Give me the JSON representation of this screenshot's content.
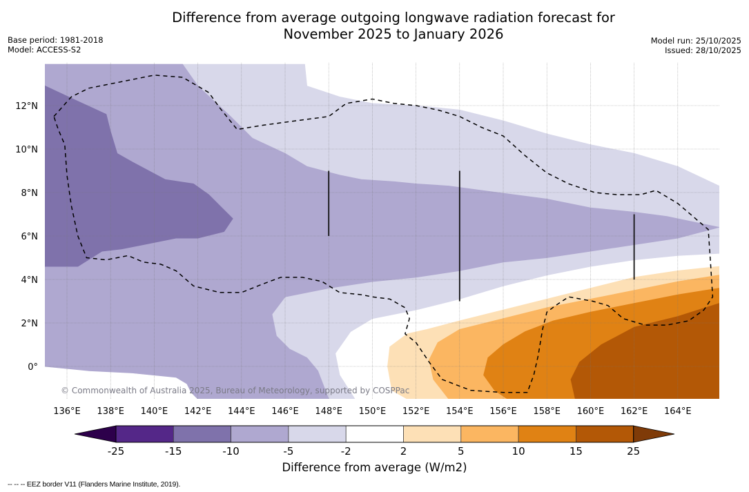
{
  "header": {
    "title_line1": "Difference from average outgoing longwave radiation forecast for",
    "title_line2": "November 2025 to January 2026",
    "base_period": "Base period: 1981-2018",
    "model": "Model: ACCESS-S2",
    "model_run": "Model run: 25/10/2025",
    "issued": "Issued: 28/10/2025"
  },
  "map": {
    "extent": {
      "lon_min": 135.0,
      "lon_max": 165.9,
      "lat_min": -1.5,
      "lat_max": 13.9
    },
    "lon_ticks": [
      {
        "value": 136,
        "label": "136°E"
      },
      {
        "value": 138,
        "label": "138°E"
      },
      {
        "value": 140,
        "label": "140°E"
      },
      {
        "value": 142,
        "label": "142°E"
      },
      {
        "value": 144,
        "label": "144°E"
      },
      {
        "value": 146,
        "label": "146°E"
      },
      {
        "value": 148,
        "label": "148°E"
      },
      {
        "value": 150,
        "label": "150°E"
      },
      {
        "value": 152,
        "label": "152°E"
      },
      {
        "value": 154,
        "label": "154°E"
      },
      {
        "value": 156,
        "label": "156°E"
      },
      {
        "value": 158,
        "label": "158°E"
      },
      {
        "value": 160,
        "label": "160°E"
      },
      {
        "value": 162,
        "label": "162°E"
      },
      {
        "value": 164,
        "label": "164°E"
      }
    ],
    "lat_ticks": [
      {
        "value": 12,
        "label": "12°N"
      },
      {
        "value": 10,
        "label": "10°N"
      },
      {
        "value": 8,
        "label": "8°N"
      },
      {
        "value": 6,
        "label": "6°N"
      },
      {
        "value": 4,
        "label": "4°N"
      },
      {
        "value": 2,
        "label": "2°N"
      },
      {
        "value": 0,
        "label": "0°"
      }
    ],
    "copyright": "© Commonwealth of Australia 2025, Bureau of Meteorology, supported by COSPPac",
    "contour_regions": [
      {
        "name": "anomaly--5-to--2",
        "color": "#d8d8ea",
        "points": [
          [
            135,
            13.9
          ],
          [
            141.3,
            13.9
          ],
          [
            144,
            13.9
          ],
          [
            146.9,
            13.9
          ],
          [
            147,
            12.9
          ],
          [
            148.5,
            12.4
          ],
          [
            150,
            12.1
          ],
          [
            152,
            12
          ],
          [
            154,
            11.8
          ],
          [
            156,
            11.3
          ],
          [
            158,
            10.7
          ],
          [
            160,
            10.2
          ],
          [
            162,
            9.8
          ],
          [
            164,
            9.2
          ],
          [
            165.9,
            8.3
          ],
          [
            165.9,
            5.2
          ],
          [
            164,
            5.1
          ],
          [
            162,
            4.9
          ],
          [
            160,
            4.6
          ],
          [
            158,
            4.2
          ],
          [
            156,
            3.7
          ],
          [
            154,
            3.1
          ],
          [
            152,
            2.6
          ],
          [
            150,
            2.2
          ],
          [
            149,
            1.6
          ],
          [
            148.3,
            0.6
          ],
          [
            148.5,
            -0.4
          ],
          [
            149.2,
            -1.5
          ],
          [
            143.8,
            -1.5
          ],
          [
            142.5,
            -0.8
          ],
          [
            141.5,
            -0.5
          ],
          [
            140,
            -0.4
          ],
          [
            138,
            -0.2
          ],
          [
            136,
            -0.1
          ],
          [
            135,
            0
          ],
          [
            135,
            13.9
          ]
        ]
      },
      {
        "name": "anomaly--10-to--5",
        "color": "#afa8d0",
        "points": [
          [
            135,
            13.9
          ],
          [
            141.3,
            13.9
          ],
          [
            142,
            12.9
          ],
          [
            143.5,
            11.5
          ],
          [
            144.5,
            10.5
          ],
          [
            146,
            9.8
          ],
          [
            147,
            9.2
          ],
          [
            148.5,
            8.8
          ],
          [
            149.5,
            8.6
          ],
          [
            151,
            8.5
          ],
          [
            152,
            8.4
          ],
          [
            153.5,
            8.3
          ],
          [
            155,
            8.1
          ],
          [
            156.5,
            7.9
          ],
          [
            158,
            7.7
          ],
          [
            160,
            7.3
          ],
          [
            162,
            7.1
          ],
          [
            163.5,
            6.9
          ],
          [
            165.9,
            6.4
          ],
          [
            164,
            5.9
          ],
          [
            162,
            5.6
          ],
          [
            160,
            5.3
          ],
          [
            158,
            5
          ],
          [
            156,
            4.8
          ],
          [
            154,
            4.4
          ],
          [
            152,
            4.1
          ],
          [
            150,
            3.9
          ],
          [
            148,
            3.6
          ],
          [
            146,
            3.2
          ],
          [
            145.4,
            2.4
          ],
          [
            145.6,
            1.4
          ],
          [
            146.2,
            0.8
          ],
          [
            147,
            0.4
          ],
          [
            147.5,
            -0.2
          ],
          [
            148,
            -1.5
          ],
          [
            142,
            -1.5
          ],
          [
            141.7,
            -1.2
          ],
          [
            141.5,
            -0.8
          ],
          [
            141,
            -0.5
          ],
          [
            139,
            -0.3
          ],
          [
            137,
            -0.2
          ],
          [
            135,
            0
          ],
          [
            135,
            13.9
          ]
        ]
      },
      {
        "name": "anomaly--15-to--10",
        "color": "#7f72ab",
        "points": [
          [
            135,
            12.9
          ],
          [
            136.5,
            12.2
          ],
          [
            137.8,
            11.6
          ],
          [
            138,
            10.8
          ],
          [
            138.3,
            9.8
          ],
          [
            139,
            9.4
          ],
          [
            140.5,
            8.6
          ],
          [
            141.8,
            8.4
          ],
          [
            142.5,
            7.9
          ],
          [
            143,
            7.4
          ],
          [
            143.6,
            6.8
          ],
          [
            143.2,
            6.2
          ],
          [
            142,
            5.9
          ],
          [
            141,
            5.9
          ],
          [
            139.5,
            5.6
          ],
          [
            138.5,
            5.4
          ],
          [
            137.6,
            5.3
          ],
          [
            136.5,
            4.6
          ],
          [
            135,
            4.6
          ],
          [
            135,
            12.9
          ]
        ]
      },
      {
        "name": "anomaly-2-to-5",
        "color": "#fde0b6",
        "points": [
          [
            165.9,
            4.6
          ],
          [
            164,
            4.4
          ],
          [
            162,
            4.1
          ],
          [
            160,
            3.6
          ],
          [
            158,
            3.1
          ],
          [
            156,
            2.6
          ],
          [
            154,
            2.1
          ],
          [
            152.5,
            1.7
          ],
          [
            151.6,
            1.5
          ],
          [
            150.8,
            0.9
          ],
          [
            150.7,
            0
          ],
          [
            150.9,
            -1.1
          ],
          [
            151.6,
            -1.5
          ],
          [
            165.9,
            -1.5
          ],
          [
            165.9,
            4.6
          ]
        ]
      },
      {
        "name": "anomaly-5-to-10",
        "color": "#fbb661",
        "points": [
          [
            165.9,
            4.2
          ],
          [
            164,
            3.9
          ],
          [
            162,
            3.5
          ],
          [
            160,
            3.1
          ],
          [
            158,
            2.7
          ],
          [
            156,
            2.2
          ],
          [
            154,
            1.7
          ],
          [
            153,
            1.1
          ],
          [
            152.6,
            0.3
          ],
          [
            152.8,
            -0.6
          ],
          [
            153.5,
            -1.5
          ],
          [
            165.9,
            -1.5
          ],
          [
            165.9,
            4.2
          ]
        ]
      },
      {
        "name": "anomaly-10-to-15",
        "color": "#e08214",
        "points": [
          [
            165.9,
            3.6
          ],
          [
            164,
            3.3
          ],
          [
            162,
            2.9
          ],
          [
            160,
            2.5
          ],
          [
            158.3,
            2.1
          ],
          [
            157,
            1.6
          ],
          [
            156,
            1
          ],
          [
            155.3,
            0.4
          ],
          [
            155.1,
            -0.4
          ],
          [
            155.6,
            -1.1
          ],
          [
            156.2,
            -1.5
          ],
          [
            165.9,
            -1.5
          ],
          [
            165.9,
            3.6
          ]
        ]
      },
      {
        "name": "anomaly-15-to-25",
        "color": "#b35806",
        "points": [
          [
            165.9,
            2.9
          ],
          [
            164,
            2.3
          ],
          [
            162,
            1.8
          ],
          [
            160.5,
            1
          ],
          [
            159.5,
            0.2
          ],
          [
            159.1,
            -0.6
          ],
          [
            159.3,
            -1.5
          ],
          [
            165.9,
            -1.5
          ],
          [
            165.9,
            2.9
          ]
        ]
      }
    ],
    "eez_border": {
      "label": "EEZ border",
      "lines": [
        [
          [
            135.4,
            11.5
          ],
          [
            136.2,
            12.4
          ],
          [
            137,
            12.8
          ],
          [
            138.5,
            13.1
          ],
          [
            140,
            13.4
          ],
          [
            141.3,
            13.3
          ],
          [
            142.5,
            12.6
          ],
          [
            143,
            11.9
          ],
          [
            143.8,
            10.9
          ],
          [
            145,
            11.1
          ],
          [
            146.5,
            11.3
          ],
          [
            148,
            11.5
          ],
          [
            148.8,
            12.1
          ],
          [
            150,
            12.3
          ],
          [
            151,
            12.1
          ],
          [
            152,
            12
          ],
          [
            153,
            11.8
          ],
          [
            154,
            11.5
          ],
          [
            155,
            11
          ],
          [
            156,
            10.6
          ],
          [
            157,
            9.7
          ],
          [
            158,
            8.9
          ],
          [
            159,
            8.4
          ],
          [
            160.2,
            8
          ],
          [
            161.2,
            7.9
          ],
          [
            162.3,
            7.9
          ],
          [
            163,
            8.1
          ],
          [
            164,
            7.5
          ],
          [
            165.4,
            6.3
          ],
          [
            165.5,
            4.8
          ],
          [
            165.6,
            3.2
          ],
          [
            165.2,
            2.6
          ],
          [
            164.5,
            2.1
          ],
          [
            163.5,
            1.9
          ],
          [
            162.5,
            1.9
          ],
          [
            161.5,
            2.2
          ],
          [
            160.8,
            2.8
          ],
          [
            160.1,
            3
          ],
          [
            159,
            3.2
          ],
          [
            158.4,
            2.8
          ],
          [
            158,
            2.5
          ],
          [
            157.8,
            1.7
          ],
          [
            157.6,
            0.5
          ],
          [
            157.4,
            -0.4
          ],
          [
            157.1,
            -1.2
          ],
          [
            156,
            -1.2
          ],
          [
            154.5,
            -1.1
          ],
          [
            153.2,
            -0.6
          ],
          [
            152.6,
            0.2
          ],
          [
            152,
            1.1
          ],
          [
            151.5,
            1.5
          ],
          [
            151.7,
            2.2
          ],
          [
            151.5,
            2.7
          ],
          [
            150.8,
            3.1
          ],
          [
            150,
            3.2
          ],
          [
            149.5,
            3.3
          ],
          [
            148.5,
            3.4
          ],
          [
            147.7,
            3.9
          ],
          [
            146.8,
            4.1
          ],
          [
            145.8,
            4.1
          ],
          [
            145,
            3.8
          ],
          [
            144,
            3.4
          ],
          [
            143,
            3.4
          ],
          [
            141.8,
            3.7
          ],
          [
            141,
            4.4
          ],
          [
            140.3,
            4.7
          ],
          [
            139.5,
            4.8
          ],
          [
            138.8,
            5.1
          ],
          [
            137.8,
            4.9
          ],
          [
            136.9,
            5
          ],
          [
            136.5,
            6
          ],
          [
            136.2,
            7.4
          ],
          [
            136,
            8.8
          ],
          [
            135.9,
            10.2
          ],
          [
            135.6,
            10.9
          ],
          [
            135.4,
            11.5
          ]
        ]
      ]
    },
    "region_lines": [
      {
        "lon": 148,
        "lat_from": 6,
        "lat_to": 9
      },
      {
        "lon": 154,
        "lat_from": 3,
        "lat_to": 9
      },
      {
        "lon": 162,
        "lat_from": 4,
        "lat_to": 7
      }
    ]
  },
  "colorbar": {
    "label": "Difference from average (W/m2)",
    "boundaries": [
      "-25",
      "-15",
      "-10",
      "-5",
      "-2",
      "2",
      "5",
      "10",
      "15",
      "25"
    ],
    "under_color": "#2d004b",
    "over_color": "#7f3b08",
    "colors": [
      "#542788",
      "#7f72ab",
      "#afa8d0",
      "#d8d8ea",
      "#ffffff",
      "#fde0b6",
      "#fbb661",
      "#e08214",
      "#b35806"
    ]
  },
  "footer": {
    "eez_note": "--  --  -- EEZ border V11 (Flanders Marine Institute, 2019)."
  }
}
